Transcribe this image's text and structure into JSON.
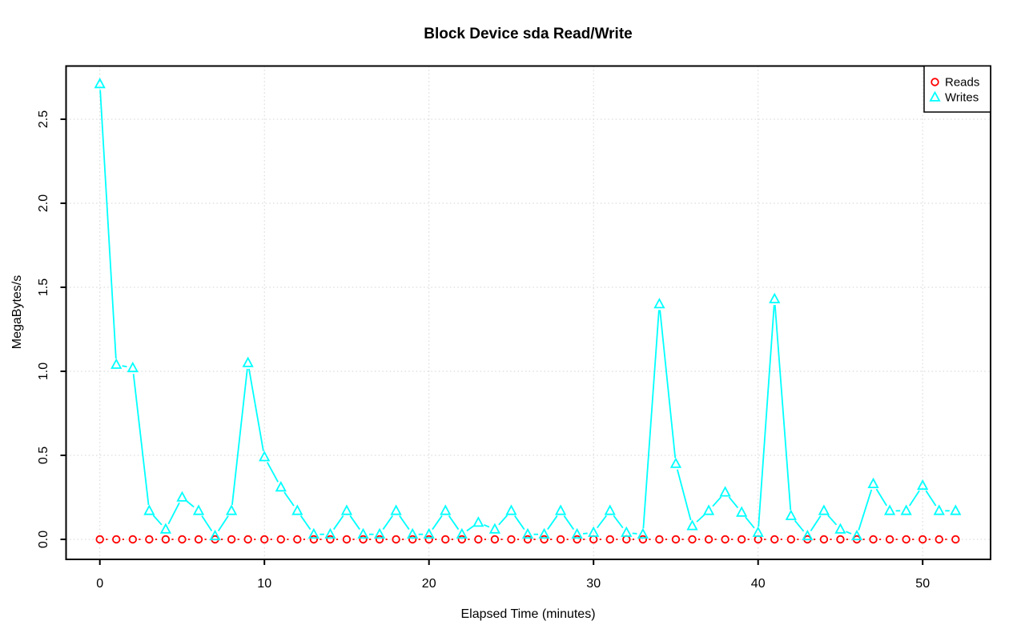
{
  "chart_data": {
    "type": "line",
    "title": "Block Device sda Read/Write",
    "xlabel": "Elapsed Time (minutes)",
    "ylabel": "MegaBytes/s",
    "x": [
      0,
      1,
      2,
      3,
      4,
      5,
      6,
      7,
      8,
      9,
      10,
      11,
      12,
      13,
      14,
      15,
      16,
      17,
      18,
      19,
      20,
      21,
      22,
      23,
      24,
      25,
      26,
      27,
      28,
      29,
      30,
      31,
      32,
      33,
      34,
      35,
      36,
      37,
      38,
      39,
      40,
      41,
      42,
      43,
      44,
      45,
      46,
      47,
      48,
      49,
      50,
      51,
      52
    ],
    "series": [
      {
        "name": "Reads",
        "color": "#ff0000",
        "marker": "circle",
        "line_style": "dotted",
        "values": [
          0,
          0,
          0,
          0,
          0,
          0,
          0,
          0,
          0,
          0,
          0,
          0,
          0,
          0,
          0,
          0,
          0,
          0,
          0,
          0,
          0,
          0,
          0,
          0,
          0,
          0,
          0,
          0,
          0,
          0,
          0,
          0,
          0,
          0,
          0,
          0,
          0,
          0,
          0,
          0,
          0,
          0,
          0,
          0,
          0,
          0,
          0,
          0,
          0,
          0,
          0,
          0,
          0
        ]
      },
      {
        "name": "Writes",
        "color": "#00ffff",
        "marker": "triangle",
        "line_style": "solid",
        "values": [
          2.71,
          1.04,
          1.02,
          0.17,
          0.06,
          0.25,
          0.17,
          0.02,
          0.17,
          1.05,
          0.49,
          0.31,
          0.17,
          0.03,
          0.03,
          0.17,
          0.03,
          0.03,
          0.17,
          0.03,
          0.03,
          0.17,
          0.03,
          0.1,
          0.06,
          0.17,
          0.03,
          0.03,
          0.17,
          0.03,
          0.04,
          0.17,
          0.04,
          0.03,
          1.4,
          0.45,
          0.08,
          0.17,
          0.28,
          0.16,
          0.04,
          1.43,
          0.14,
          0.02,
          0.17,
          0.06,
          0.02,
          0.33,
          0.17,
          0.17,
          0.32,
          0.17,
          0.17
        ]
      }
    ],
    "x_ticks": [
      0,
      10,
      20,
      30,
      40,
      50
    ],
    "x_tick_labels": [
      "0",
      "10",
      "20",
      "30",
      "40",
      "50"
    ],
    "y_ticks": [
      0,
      0.5,
      1,
      1.5,
      2,
      2.5
    ],
    "y_tick_labels": [
      "0.0",
      "0.5",
      "1.0",
      "1.5",
      "2.0",
      "2.5"
    ],
    "xlim": [
      0,
      52
    ],
    "ylim": [
      0,
      2.71
    ],
    "grid": true,
    "grid_color": "#d3d3d3",
    "axis_color": "#000000",
    "background": "#ffffff",
    "legend": {
      "position": "top-right",
      "entries": [
        "Reads",
        "Writes"
      ]
    }
  }
}
